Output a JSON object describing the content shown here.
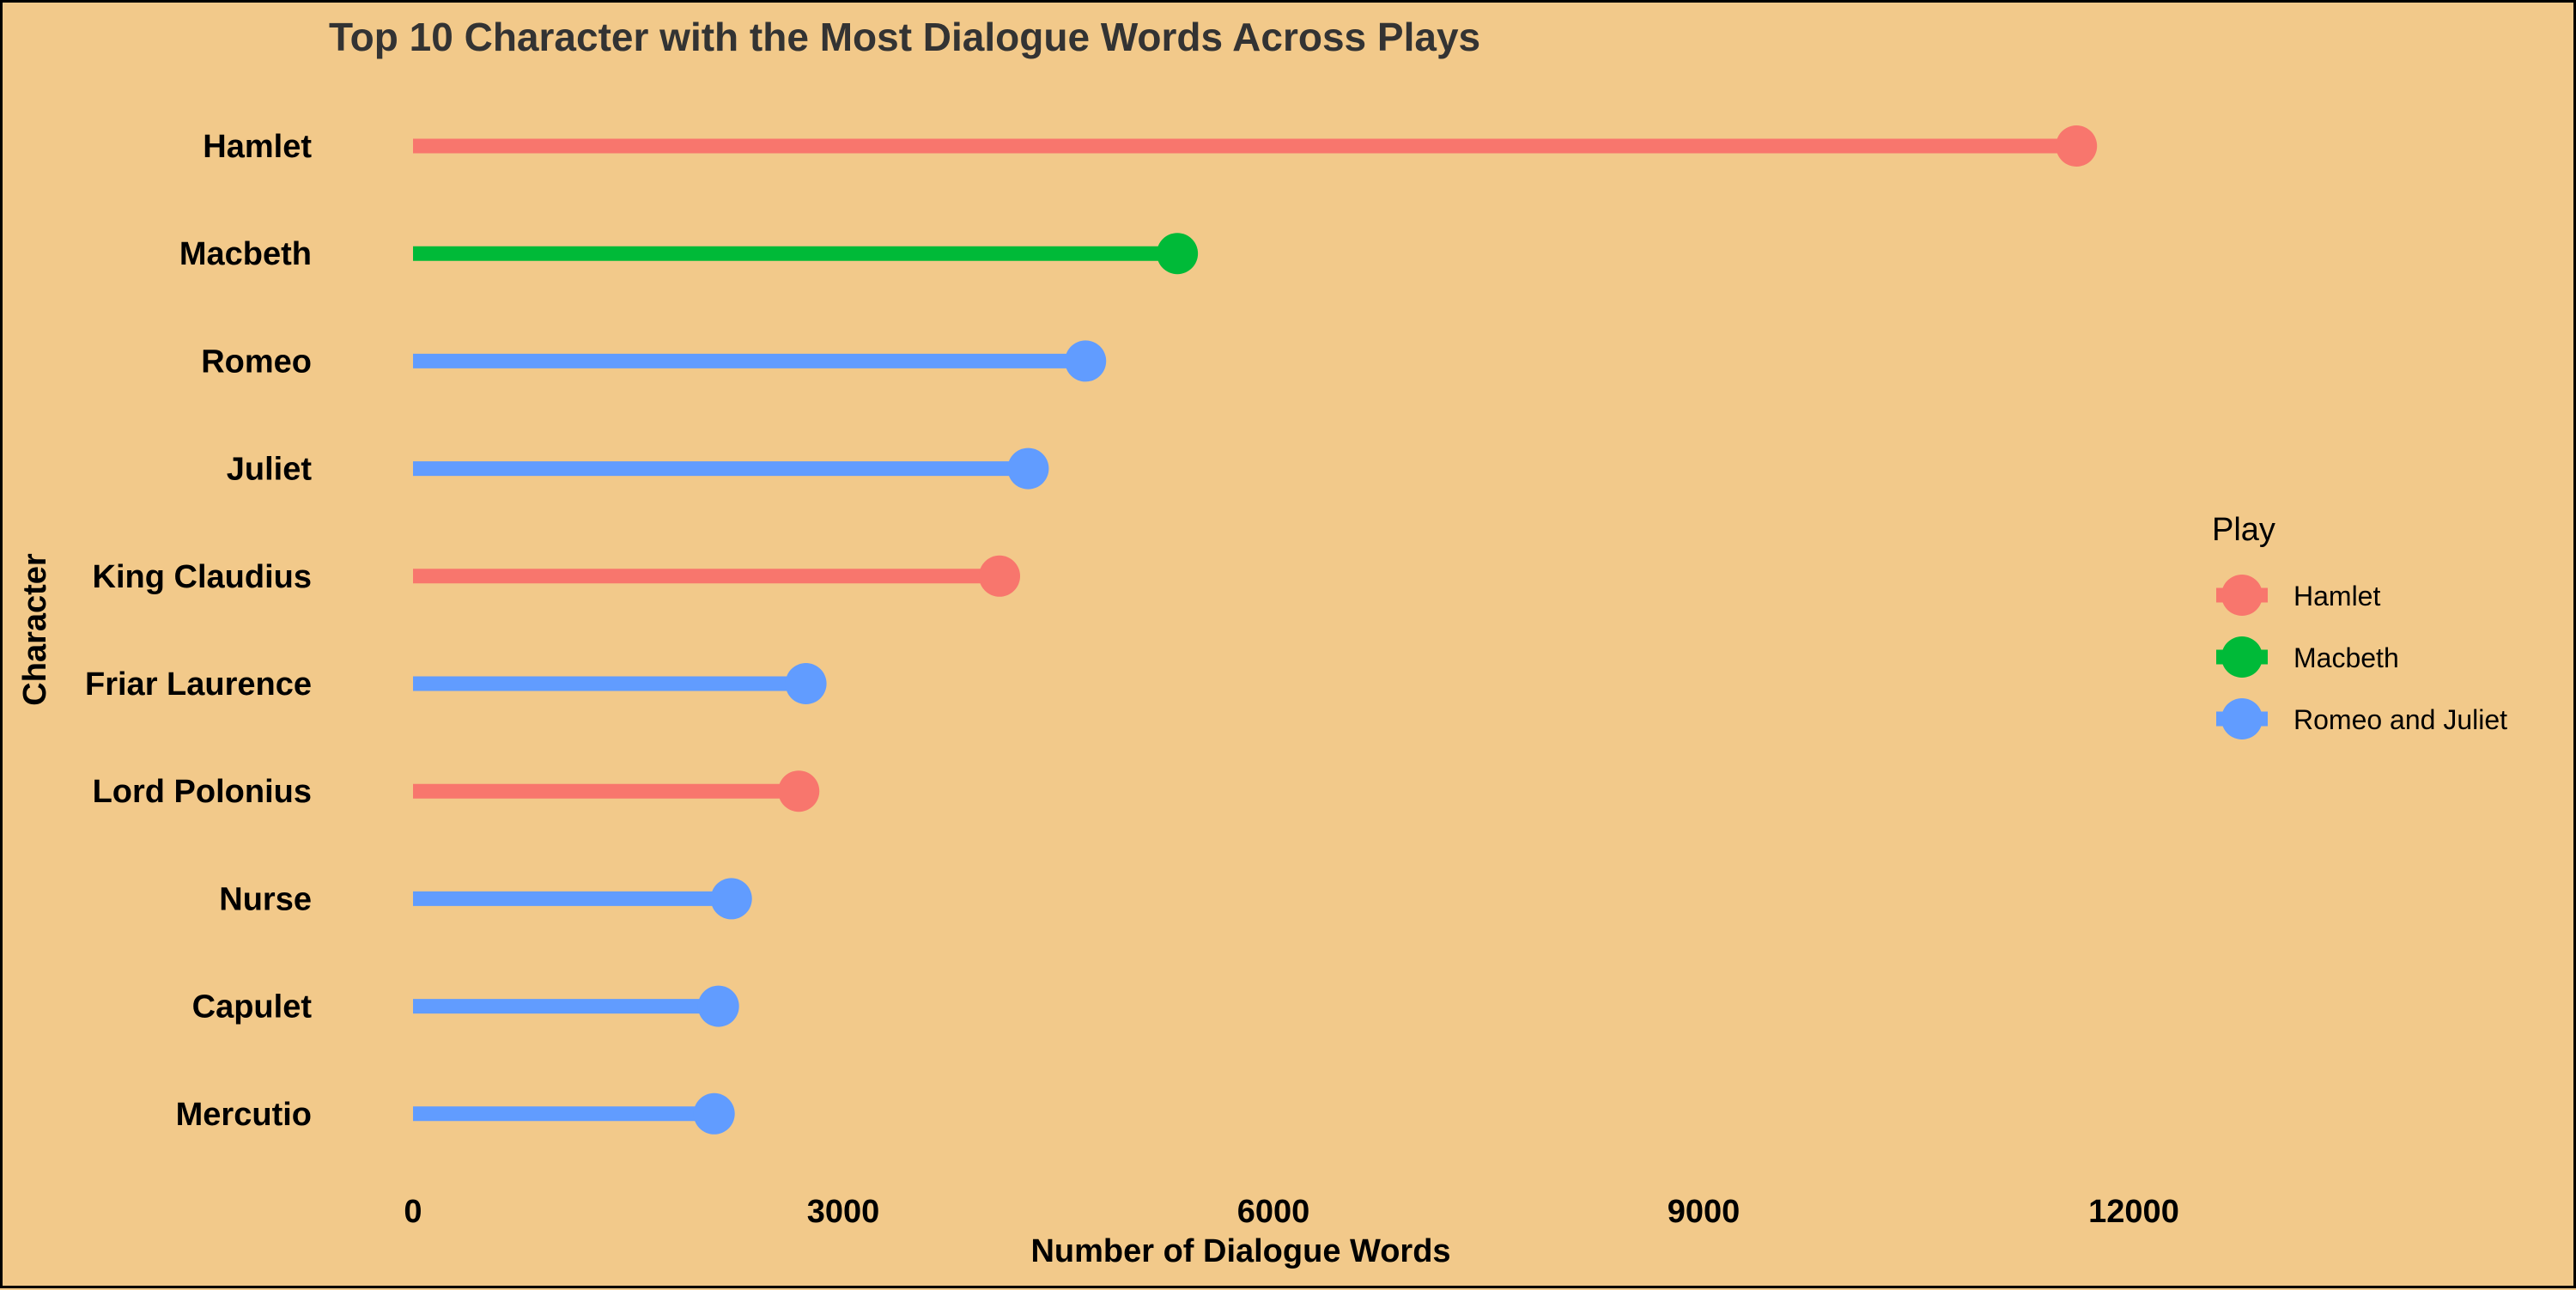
{
  "chart_data": {
    "type": "lollipop",
    "title": "Top 10 Character with the Most Dialogue Words Across Plays",
    "xlabel": "Number of Dialogue Words",
    "ylabel": "Character",
    "xlim": [
      0,
      14000
    ],
    "x_ticks": [
      0,
      3000,
      6000,
      9000,
      12000
    ],
    "x_tick_labels": [
      "0",
      "3000",
      "6000",
      "9000",
      "12000"
    ],
    "grid": false,
    "legend_title": "Play",
    "legend_position": "right",
    "legend": [
      {
        "name": "Hamlet",
        "color": "#F8766D"
      },
      {
        "name": "Macbeth",
        "color": "#00BA38"
      },
      {
        "name": "Romeo and Juliet",
        "color": "#619CFF"
      }
    ],
    "points": [
      {
        "character": "Hamlet",
        "play": "Hamlet",
        "value": 11600
      },
      {
        "character": "Macbeth",
        "play": "Macbeth",
        "value": 5330
      },
      {
        "character": "Romeo",
        "play": "Romeo and Juliet",
        "value": 4690
      },
      {
        "character": "Juliet",
        "play": "Romeo and Juliet",
        "value": 4290
      },
      {
        "character": "King Claudius",
        "play": "Hamlet",
        "value": 4090
      },
      {
        "character": "Friar Laurence",
        "play": "Romeo and Juliet",
        "value": 2740
      },
      {
        "character": "Lord Polonius",
        "play": "Hamlet",
        "value": 2690
      },
      {
        "character": "Nurse",
        "play": "Romeo and Juliet",
        "value": 2220
      },
      {
        "character": "Capulet",
        "play": "Romeo and Juliet",
        "value": 2130
      },
      {
        "character": "Mercutio",
        "play": "Romeo and Juliet",
        "value": 2100
      }
    ]
  }
}
